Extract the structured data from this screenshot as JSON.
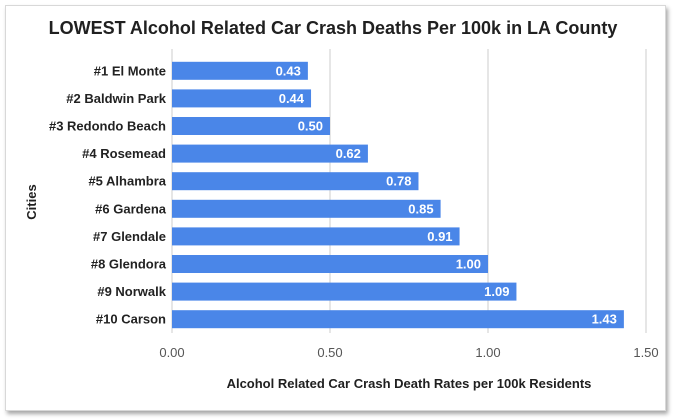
{
  "chart_data": {
    "type": "bar",
    "orientation": "horizontal",
    "title": "LOWEST Alcohol Related Car Crash Deaths Per 100k in LA County",
    "xlabel": "Alcohol Related Car Crash Death Rates per 100k Residents",
    "ylabel": "Cities",
    "categories": [
      "#1 El Monte",
      "#2 Baldwin Park",
      "#3 Redondo Beach",
      "#4 Rosemead",
      "#5 Alhambra",
      "#6 Gardena",
      "#7 Glendale",
      "#8 Glendora",
      "#9 Norwalk",
      "#10 Carson"
    ],
    "values": [
      0.43,
      0.44,
      0.5,
      0.62,
      0.78,
      0.85,
      0.91,
      1.0,
      1.09,
      1.43
    ],
    "value_labels": [
      "0.43",
      "0.44",
      "0.50",
      "0.62",
      "0.78",
      "0.85",
      "0.91",
      "1.00",
      "1.09",
      "1.43"
    ],
    "xlim": [
      0,
      1.5
    ],
    "xticks": [
      0,
      0.5,
      1.0,
      1.5
    ],
    "xtick_labels": [
      "0.00",
      "0.50",
      "1.00",
      "1.50"
    ],
    "grid": true,
    "legend": "none",
    "bar_color": "#4a86e8"
  }
}
